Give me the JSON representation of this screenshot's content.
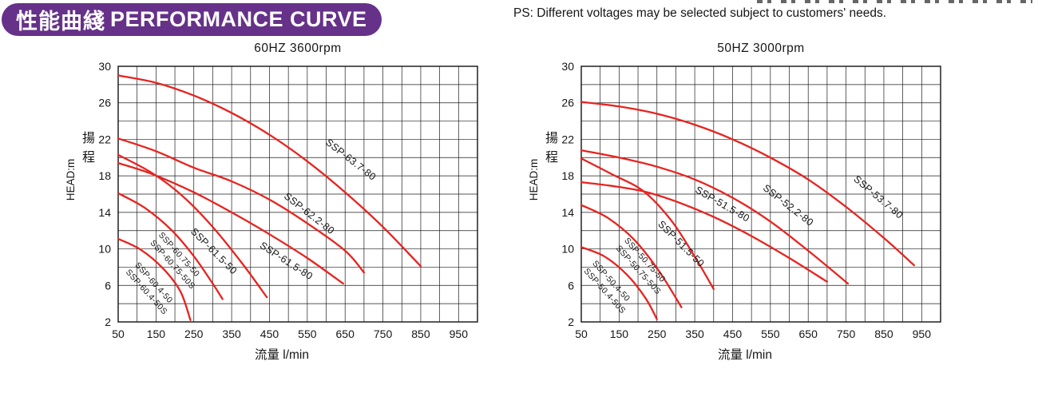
{
  "header": {
    "badge_cn": "性能曲綫",
    "badge_en": "PERFORMANCE CURVE",
    "ps_note": "PS: Different voltages may be selected subject to customers' needs."
  },
  "chart_data": [
    {
      "type": "line",
      "title": "60HZ  3600rpm",
      "xlabel": "流量 l/min",
      "ylabel_cn": "揚程",
      "ylabel_en": "HEAD:m",
      "xlim": [
        50,
        1000
      ],
      "ylim": [
        2,
        30
      ],
      "x_grid_step": 50,
      "y_grid_step": 2,
      "x_ticks": [
        50,
        150,
        250,
        350,
        450,
        550,
        650,
        750,
        850,
        950
      ],
      "y_ticks": [
        30,
        26,
        22,
        18,
        14,
        10,
        6,
        2
      ],
      "grid": true,
      "legend_position": "labels-on-curves",
      "line_color": "#e8231f",
      "series": [
        {
          "name": "SSP-63.7-80",
          "points": [
            [
              50,
              29
            ],
            [
              150,
              28.2
            ],
            [
              250,
              26.8
            ],
            [
              350,
              24.9
            ],
            [
              450,
              22.5
            ],
            [
              550,
              19.6
            ],
            [
              650,
              16.2
            ],
            [
              750,
              12.4
            ],
            [
              850,
              8.1
            ]
          ],
          "label": {
            "x": 660,
            "y": 19.5,
            "rot": 38,
            "size": 12.5
          }
        },
        {
          "name": "SSP-62.2-80",
          "points": [
            [
              50,
              22.1
            ],
            [
              150,
              20.7
            ],
            [
              250,
              18.9
            ],
            [
              350,
              17.4
            ],
            [
              450,
              15.4
            ],
            [
              550,
              12.8
            ],
            [
              650,
              9.8
            ],
            [
              700,
              7.4
            ]
          ],
          "label": {
            "x": 550,
            "y": 13.6,
            "rot": 38,
            "size": 12.5
          }
        },
        {
          "name": "SSP-61.5-80",
          "points": [
            [
              50,
              19.4
            ],
            [
              140,
              18.2
            ],
            [
              250,
              16.2
            ],
            [
              350,
              14.0
            ],
            [
              450,
              11.6
            ],
            [
              550,
              9.0
            ],
            [
              645,
              6.2
            ]
          ],
          "label": {
            "x": 490,
            "y": 8.4,
            "rot": 33,
            "size": 12.5
          }
        },
        {
          "name": "SSP-61.5-50",
          "points": [
            [
              50,
              20.3
            ],
            [
              140,
              18.3
            ],
            [
              220,
              15.8
            ],
            [
              300,
              12.4
            ],
            [
              380,
              8.3
            ],
            [
              443,
              4.7
            ]
          ],
          "label": {
            "x": 297,
            "y": 9.5,
            "rot": 45,
            "size": 12.5
          }
        },
        {
          "name": "SSP-60.75-50",
          "points": [
            [
              50,
              16.1
            ],
            [
              120,
              14.5
            ],
            [
              190,
              12.1
            ],
            [
              250,
              9.2
            ],
            [
              300,
              6.2
            ],
            [
              326,
              4.5
            ]
          ],
          "label": {
            "x": 206,
            "y": 9.2,
            "rot": 48,
            "size": 10.5
          }
        },
        {
          "name": "SSP-60.75-50S",
          "points": [],
          "label": {
            "x": 189,
            "y": 8.1,
            "rot": 48,
            "size": 10.5
          }
        },
        {
          "name": "SSP-60.4-50",
          "points": [
            [
              50,
              11.1
            ],
            [
              110,
              9.9
            ],
            [
              170,
              7.8
            ],
            [
              215,
              5.3
            ],
            [
              241,
              2.2
            ]
          ],
          "label": {
            "x": 139,
            "y": 6.1,
            "rot": 48,
            "size": 10.5
          }
        },
        {
          "name": "SSP-60.4-50S",
          "points": [],
          "label": {
            "x": 120,
            "y": 5.1,
            "rot": 48,
            "size": 10.5
          }
        }
      ]
    },
    {
      "type": "line",
      "title": "50HZ  3000rpm",
      "xlabel": "流量 l/min",
      "ylabel_cn": "揚程",
      "ylabel_en": "HEAD:m",
      "xlim": [
        50,
        1000
      ],
      "ylim": [
        2,
        30
      ],
      "x_grid_step": 50,
      "y_grid_step": 2,
      "x_ticks": [
        50,
        150,
        250,
        350,
        450,
        550,
        650,
        750,
        850,
        950
      ],
      "y_ticks": [
        30,
        26,
        22,
        18,
        14,
        10,
        6,
        2
      ],
      "grid": true,
      "legend_position": "labels-on-curves",
      "line_color": "#e8231f",
      "series": [
        {
          "name": "SSP-53.7-80",
          "points": [
            [
              50,
              26.1
            ],
            [
              150,
              25.6
            ],
            [
              250,
              24.8
            ],
            [
              350,
              23.6
            ],
            [
              450,
              22.0
            ],
            [
              550,
              20.0
            ],
            [
              650,
              17.6
            ],
            [
              750,
              14.6
            ],
            [
              850,
              11.2
            ],
            [
              930,
              8.2
            ]
          ],
          "label": {
            "x": 830,
            "y": 15.4,
            "rot": 40,
            "size": 12.5
          }
        },
        {
          "name": "SSP-52.2-80",
          "points": [
            [
              50,
              20.8
            ],
            [
              150,
              20.0
            ],
            [
              250,
              19.0
            ],
            [
              350,
              17.6
            ],
            [
              450,
              15.6
            ],
            [
              550,
              13.0
            ],
            [
              650,
              9.8
            ],
            [
              755,
              6.2
            ]
          ],
          "label": {
            "x": 592,
            "y": 14.5,
            "rot": 38,
            "size": 12.5
          }
        },
        {
          "name": "SSP-51.5-80",
          "points": [
            [
              50,
              17.3
            ],
            [
              130,
              16.9
            ],
            [
              215,
              16.3
            ],
            [
              300,
              15.2
            ],
            [
              400,
              13.5
            ],
            [
              500,
              11.4
            ],
            [
              600,
              9.0
            ],
            [
              700,
              6.4
            ]
          ],
          "label": {
            "x": 419,
            "y": 14.6,
            "rot": 30,
            "size": 12.5
          }
        },
        {
          "name": "SSP-51.5-50",
          "points": [
            [
              50,
              19.9
            ],
            [
              130,
              18.2
            ],
            [
              215,
              16.3
            ],
            [
              290,
              13.0
            ],
            [
              355,
              8.8
            ],
            [
              400,
              5.6
            ]
          ],
          "label": {
            "x": 308,
            "y": 10.3,
            "rot": 45,
            "size": 12.5
          }
        },
        {
          "name": "SSP-50.75-50",
          "points": [
            [
              50,
              14.8
            ],
            [
              120,
              13.4
            ],
            [
              190,
              11.0
            ],
            [
              255,
              7.6
            ],
            [
              315,
              3.6
            ]
          ],
          "label": {
            "x": 213,
            "y": 8.6,
            "rot": 48,
            "size": 10.5
          }
        },
        {
          "name": "SSP-50.75-50S",
          "points": [],
          "label": {
            "x": 196,
            "y": 7.5,
            "rot": 48,
            "size": 10.5
          }
        },
        {
          "name": "SSP-50.4-50",
          "points": [
            [
              50,
              10.2
            ],
            [
              110,
              9.2
            ],
            [
              170,
              7.2
            ],
            [
              220,
              4.6
            ],
            [
              250,
              2.3
            ]
          ],
          "label": {
            "x": 124,
            "y": 6.3,
            "rot": 48,
            "size": 10.5
          }
        },
        {
          "name": "SSP-50.4-50S",
          "points": [],
          "label": {
            "x": 107,
            "y": 5.2,
            "rot": 48,
            "size": 10.5
          }
        }
      ]
    }
  ]
}
